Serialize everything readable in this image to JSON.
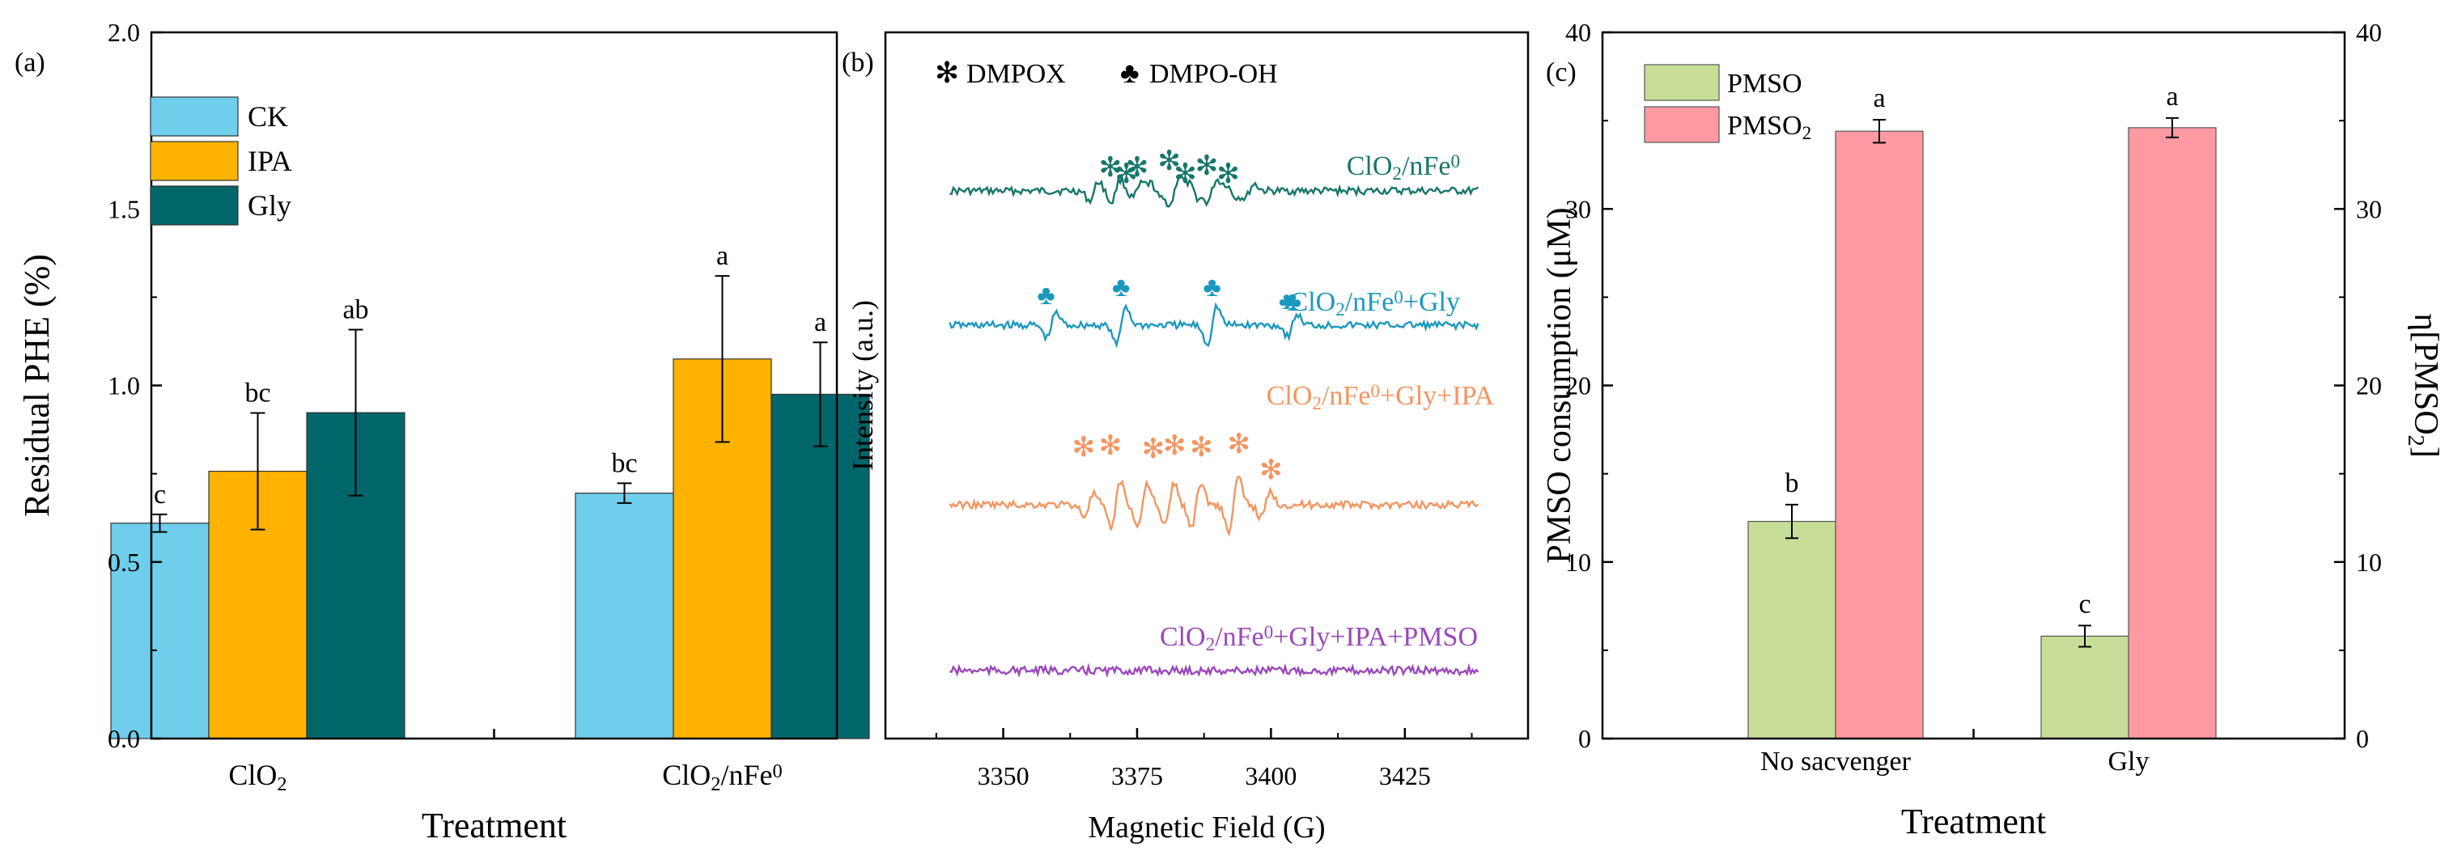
{
  "chart_data": [
    {
      "panel": "(a)",
      "type": "bar",
      "title": "",
      "xlabel": "Treatment",
      "ylabel": "Residual PHE (%)",
      "ylim": [
        0.0,
        2.0
      ],
      "yticks": [
        0.0,
        0.5,
        1.0,
        1.5,
        2.0
      ],
      "ytick_labels": [
        "0.0",
        "0.5",
        "1.0",
        "1.5",
        "2.0"
      ],
      "categories": [
        {
          "base": "ClO",
          "sub": "2",
          "sup": "",
          "tail": ""
        },
        {
          "base": "ClO",
          "sub": "2",
          "sup": "0",
          "tail": "/nFe"
        }
      ],
      "series": [
        {
          "name": "CK",
          "color": "#6ECEEB",
          "values": [
            0.61,
            0.695
          ],
          "errors": [
            0.025,
            0.028
          ],
          "letters": [
            "c",
            "bc"
          ]
        },
        {
          "name": "IPA",
          "color": "#FFB300",
          "values": [
            0.757,
            1.075
          ],
          "errors": [
            0.165,
            0.235
          ],
          "letters": [
            "bc",
            "a"
          ]
        },
        {
          "name": "Gly",
          "color": "#01666A",
          "values": [
            0.923,
            0.975
          ],
          "errors": [
            0.235,
            0.147
          ],
          "letters": [
            "ab",
            "a"
          ]
        }
      ]
    },
    {
      "panel": "(b)",
      "type": "line",
      "title": "",
      "xlabel": "Magnetic Field (G)",
      "ylabel": "Intensity (a.u.)",
      "xlim": [
        3328,
        3448
      ],
      "xticks": [
        3350,
        3375,
        3400,
        3425
      ],
      "xtick_labels": [
        "3350",
        "3375",
        "3400",
        "3425"
      ],
      "legend": [
        {
          "symbol": "✻",
          "label": "DMPOX"
        },
        {
          "symbol": "♣",
          "label": "DMPO-OH"
        }
      ],
      "series": [
        {
          "name_parts": [
            "ClO",
            "2",
            "/nFe",
            "0",
            ""
          ],
          "color": "#17766A",
          "marker": "✻",
          "range": [
            3340,
            3439
          ],
          "peaks": [
            {
              "x": 3367,
              "a": 20
            },
            {
              "x": 3371,
              "a": 24
            },
            {
              "x": 3375,
              "a": 14
            },
            {
              "x": 3378.5,
              "a": -14
            },
            {
              "x": 3382,
              "a": 28
            },
            {
              "x": 3385.5,
              "a": -14
            },
            {
              "x": 3389,
              "a": 22
            },
            {
              "x": 3392.5,
              "a": -12
            },
            {
              "x": 3396,
              "a": 14
            }
          ],
          "markers_at": [
            3370,
            3373,
            3375,
            3381,
            3384,
            3388,
            3392
          ]
        },
        {
          "name_parts": [
            "ClO",
            "2",
            "/nFe",
            "0",
            "+Gly"
          ],
          "color": "#1C98BF",
          "marker": "♣",
          "range": [
            3340,
            3439
          ],
          "peaks": [
            {
              "x": 3359,
              "a": 26
            },
            {
              "x": 3372,
              "a": 40
            },
            {
              "x": 3389,
              "a": 40
            },
            {
              "x": 3404,
              "a": 22
            }
          ],
          "markers_at": [
            3358,
            3372,
            3389,
            3404
          ]
        },
        {
          "name_parts": [
            "ClO",
            "2",
            "/nFe",
            "0",
            "+Gly+IPA"
          ],
          "color": "#F4955F",
          "marker": "✻",
          "range": [
            3340,
            3439
          ],
          "peaks": [
            {
              "x": 3366,
              "a": 22
            },
            {
              "x": 3371,
              "a": 48
            },
            {
              "x": 3376,
              "a": 46
            },
            {
              "x": 3381,
              "a": 44
            },
            {
              "x": 3386,
              "a": 46
            },
            {
              "x": 3393,
              "a": 56
            },
            {
              "x": 3399,
              "a": 26
            }
          ],
          "markers_at": [
            3365,
            3370,
            3378,
            3382,
            3387,
            3394,
            3400
          ]
        },
        {
          "name_parts": [
            "ClO",
            "2",
            "/nFe",
            "0",
            "+Gly+IPA+PMSO"
          ],
          "color": "#9A48BB",
          "marker": "",
          "range": [
            3340,
            3439
          ],
          "peaks": [],
          "markers_at": []
        }
      ]
    },
    {
      "panel": "(c)",
      "type": "bar",
      "title": "",
      "xlabel": "Treatment",
      "ylabel": "PMSO consumption (μM)",
      "y2label_parts": [
        "η[PMSO",
        "2",
        "]"
      ],
      "ylim": [
        0,
        40
      ],
      "yticks": [
        0,
        10,
        20,
        30,
        40
      ],
      "ytick_labels": [
        "0",
        "10",
        "20",
        "30",
        "40"
      ],
      "categories": [
        "No sacvenger",
        "Gly"
      ],
      "series": [
        {
          "name": "PMSO",
          "name_sub": "",
          "color": "#C8DE98",
          "values": [
            12.3,
            5.8
          ],
          "errors": [
            0.95,
            0.6
          ],
          "letters": [
            "b",
            "c"
          ]
        },
        {
          "name": "PMSO",
          "name_sub": "2",
          "color": "#FF9AA2",
          "values": [
            34.4,
            34.6
          ],
          "errors": [
            0.65,
            0.55
          ],
          "letters": [
            "a",
            "a"
          ]
        }
      ]
    }
  ]
}
